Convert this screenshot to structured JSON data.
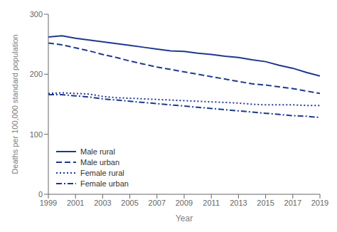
{
  "chart_data": {
    "type": "line",
    "xlabel": "Year",
    "ylabel": "Deaths per 100,000 standard population",
    "x": [
      1999,
      2000,
      2001,
      2002,
      2003,
      2004,
      2005,
      2006,
      2007,
      2008,
      2009,
      2010,
      2011,
      2012,
      2013,
      2014,
      2015,
      2016,
      2017,
      2018,
      2019
    ],
    "xlim": [
      1999,
      2019
    ],
    "xticks": [
      1999,
      2001,
      2003,
      2005,
      2007,
      2009,
      2011,
      2013,
      2015,
      2017,
      2019
    ],
    "ylim": [
      0,
      300
    ],
    "yticks": [
      0,
      100,
      200,
      300
    ],
    "grid": false,
    "legend": "lower left",
    "series": [
      {
        "name": "Male rural",
        "color": "#1e3a8c",
        "line_style": "solid",
        "values": [
          262,
          264,
          260,
          257,
          254,
          251,
          248,
          245,
          242,
          239,
          238,
          235,
          233,
          230,
          228,
          224,
          221,
          215,
          210,
          203,
          197
        ]
      },
      {
        "name": "Male urban",
        "color": "#1e3a8c",
        "line_style": "dashed",
        "values": [
          252,
          249,
          244,
          239,
          233,
          228,
          222,
          217,
          212,
          208,
          204,
          200,
          196,
          192,
          188,
          184,
          182,
          179,
          176,
          172,
          168
        ]
      },
      {
        "name": "Female rural",
        "color": "#1e3a8c",
        "line_style": "dotted",
        "values": [
          168,
          169,
          168,
          167,
          163,
          161,
          160,
          159,
          158,
          157,
          156,
          155,
          154,
          153,
          152,
          150,
          149,
          149,
          149,
          148,
          148
        ]
      },
      {
        "name": "Female urban",
        "color": "#1e3a8c",
        "line_style": "dashdot",
        "values": [
          166,
          166,
          164,
          162,
          159,
          157,
          155,
          153,
          151,
          149,
          147,
          145,
          143,
          141,
          139,
          137,
          135,
          133,
          131,
          130,
          128
        ]
      }
    ]
  }
}
